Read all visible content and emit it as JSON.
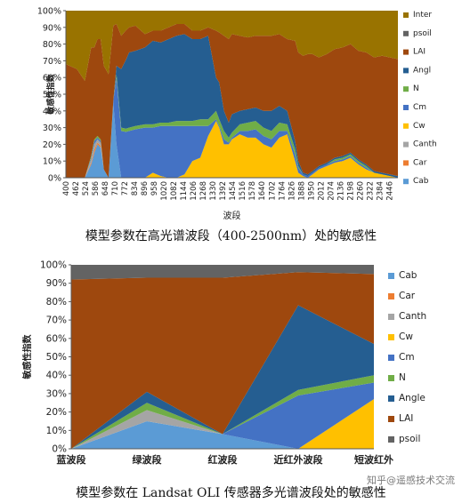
{
  "chart_data": [
    {
      "type": "area",
      "stacked": true,
      "title": "",
      "caption": "模型参数在高光谱波段（400-2500nm）处的敏感性",
      "xlabel": "波段",
      "ylabel": "敏感性指数",
      "ylim": [
        0,
        100
      ],
      "y_ticks": [
        "0%",
        "10%",
        "20%",
        "30%",
        "40%",
        "50%",
        "60%",
        "70%",
        "80%",
        "90%",
        "100%"
      ],
      "x_ticks": [
        "400",
        "462",
        "524",
        "586",
        "648",
        "710",
        "772",
        "834",
        "896",
        "958",
        "1020",
        "1082",
        "1144",
        "1206",
        "1268",
        "1330",
        "1392",
        "1454",
        "1516",
        "1578",
        "1640",
        "1702",
        "1764",
        "1826",
        "1888",
        "1950",
        "2012",
        "2074",
        "2136",
        "2198",
        "2260",
        "2322",
        "2384",
        "2446"
      ],
      "x": [
        400,
        470,
        520,
        560,
        580,
        600,
        620,
        640,
        670,
        700,
        720,
        750,
        780,
        800,
        840,
        900,
        950,
        1000,
        1050,
        1100,
        1150,
        1200,
        1250,
        1300,
        1350,
        1370,
        1400,
        1430,
        1450,
        1500,
        1550,
        1600,
        1650,
        1700,
        1750,
        1800,
        1850,
        1870,
        1900,
        1930,
        1960,
        2000,
        2050,
        2100,
        2150,
        2200,
        2250,
        2300,
        2350,
        2400,
        2450,
        2500
      ],
      "legend": "right",
      "series": [
        {
          "name": "Cab",
          "color": "#5b9bd5",
          "values": [
            0,
            0,
            0,
            8,
            15,
            20,
            18,
            5,
            0,
            45,
            20,
            0,
            0,
            0,
            0,
            0,
            0,
            0,
            0,
            0,
            0,
            0,
            0,
            0,
            0,
            0,
            0,
            0,
            0,
            0,
            0,
            0,
            0,
            0,
            0,
            0,
            0,
            0,
            0,
            0,
            0,
            0,
            0,
            0,
            0,
            0,
            0,
            0,
            0,
            0,
            0,
            0
          ]
        },
        {
          "name": "Car",
          "color": "#ed7d31",
          "values": [
            0,
            0,
            0,
            1,
            2,
            1,
            1,
            0,
            0,
            0,
            0,
            0,
            0,
            0,
            0,
            0,
            0,
            0,
            0,
            0,
            0,
            0,
            0,
            0,
            0,
            0,
            0,
            0,
            0,
            0,
            0,
            0,
            0,
            0,
            0,
            0,
            0,
            0,
            0,
            0,
            0,
            0,
            0,
            0,
            0,
            0,
            0,
            0,
            0,
            0,
            0,
            0
          ]
        },
        {
          "name": "Canth",
          "color": "#a5a5a5",
          "values": [
            0,
            0,
            0,
            2,
            3,
            2,
            2,
            0,
            0,
            0,
            0,
            0,
            0,
            0,
            0,
            0,
            0,
            0,
            0,
            0,
            0,
            0,
            0,
            0,
            0,
            0,
            0,
            0,
            0,
            0,
            0,
            0,
            0,
            0,
            0,
            0,
            0,
            0,
            0,
            0,
            0,
            0,
            0,
            0,
            0,
            0,
            0,
            0,
            0,
            0,
            0,
            0
          ]
        },
        {
          "name": "Cw",
          "color": "#ffc000",
          "values": [
            0,
            0,
            0,
            0,
            0,
            0,
            0,
            0,
            0,
            0,
            0,
            0,
            0,
            0,
            0,
            0,
            3,
            1,
            0,
            0,
            2,
            10,
            12,
            25,
            34,
            30,
            20,
            20,
            23,
            26,
            24,
            24,
            20,
            18,
            24,
            26,
            10,
            3,
            1,
            0,
            2,
            5,
            7,
            9,
            10,
            12,
            8,
            5,
            3,
            2,
            1,
            0
          ]
        },
        {
          "name": "Cm",
          "color": "#4472c4",
          "values": [
            0,
            0,
            0,
            1,
            2,
            1,
            1,
            0,
            0,
            1,
            40,
            28,
            28,
            28,
            29,
            30,
            27,
            30,
            31,
            31,
            29,
            21,
            19,
            6,
            1,
            1,
            3,
            1,
            1,
            2,
            4,
            5,
            5,
            5,
            4,
            2,
            4,
            3,
            1,
            1,
            1,
            1,
            1,
            1,
            1,
            1,
            1,
            1,
            0,
            0,
            0,
            0
          ]
        },
        {
          "name": "N",
          "color": "#70ad47",
          "values": [
            0,
            0,
            0,
            1,
            1,
            1,
            1,
            0,
            0,
            0,
            2,
            2,
            2,
            2,
            2,
            2,
            2,
            2,
            2,
            3,
            3,
            3,
            4,
            4,
            5,
            4,
            5,
            3,
            3,
            4,
            5,
            5,
            5,
            5,
            5,
            4,
            3,
            1,
            0,
            0,
            0,
            0,
            0,
            1,
            1,
            1,
            1,
            1,
            0,
            0,
            0,
            0
          ]
        },
        {
          "name": "Angl",
          "color": "#255e91",
          "values": [
            0,
            0,
            0,
            0,
            0,
            0,
            0,
            0,
            0,
            0,
            5,
            35,
            42,
            45,
            45,
            46,
            50,
            48,
            50,
            51,
            52,
            49,
            48,
            50,
            20,
            22,
            12,
            9,
            11,
            8,
            8,
            8,
            10,
            12,
            10,
            8,
            5,
            3,
            1,
            1,
            1,
            1,
            1,
            1,
            1,
            1,
            1,
            1,
            1,
            1,
            1,
            1
          ]
        },
        {
          "name": "LAI",
          "color": "#9e480e",
          "values": [
            68,
            65,
            58,
            65,
            55,
            58,
            60,
            62,
            62,
            45,
            25,
            20,
            18,
            15,
            15,
            8,
            6,
            7,
            7,
            7,
            6,
            5,
            5,
            5,
            28,
            30,
            45,
            50,
            48,
            45,
            43,
            43,
            45,
            45,
            43,
            43,
            60,
            65,
            70,
            72,
            70,
            65,
            65,
            65,
            65,
            65,
            65,
            67,
            68,
            70,
            70,
            70
          ]
        },
        {
          "name": "psoil",
          "color": "#636363",
          "values": [
            0,
            0,
            0,
            0,
            0,
            0,
            0,
            0,
            0,
            0,
            0,
            0,
            0,
            0,
            0,
            0,
            0,
            0,
            0,
            0,
            0,
            0,
            0,
            0,
            0,
            0,
            0,
            0,
            0,
            0,
            0,
            0,
            0,
            0,
            0,
            0,
            0,
            0,
            0,
            0,
            0,
            0,
            0,
            0,
            0,
            0,
            0,
            0,
            0,
            0,
            0,
            0
          ]
        },
        {
          "name": "Inter",
          "color": "#997300",
          "values": [
            32,
            35,
            42,
            22,
            22,
            17,
            17,
            33,
            38,
            9,
            8,
            15,
            12,
            10,
            9,
            14,
            12,
            12,
            10,
            8,
            8,
            12,
            12,
            10,
            12,
            13,
            15,
            17,
            14,
            15,
            16,
            15,
            15,
            15,
            14,
            17,
            18,
            25,
            27,
            26,
            26,
            28,
            26,
            23,
            22,
            20,
            24,
            25,
            28,
            27,
            28,
            29
          ]
        }
      ]
    },
    {
      "type": "area",
      "stacked": true,
      "title": "",
      "caption": "模型参数在 Landsat OLI 传感器多光谱波段处的敏感性",
      "xlabel": "",
      "ylabel": "敏感性指数",
      "ylim": [
        0,
        100
      ],
      "y_ticks": [
        "0%",
        "10%",
        "20%",
        "30%",
        "40%",
        "50%",
        "60%",
        "70%",
        "80%",
        "90%",
        "100%"
      ],
      "categories": [
        "蓝波段",
        "绿波段",
        "红波段",
        "近红外波段",
        "短波红外"
      ],
      "legend": "right",
      "series": [
        {
          "name": "Cab",
          "color": "#5b9bd5",
          "values": [
            0,
            15,
            8,
            0,
            0
          ]
        },
        {
          "name": "Car",
          "color": "#ed7d31",
          "values": [
            0,
            0,
            0,
            0,
            0
          ]
        },
        {
          "name": "Canth",
          "color": "#a5a5a5",
          "values": [
            0,
            6,
            0,
            0,
            0
          ]
        },
        {
          "name": "Cw",
          "color": "#ffc000",
          "values": [
            0,
            0,
            0,
            0,
            27
          ]
        },
        {
          "name": "Cm",
          "color": "#4472c4",
          "values": [
            0,
            0,
            0,
            29,
            9
          ]
        },
        {
          "name": "N",
          "color": "#70ad47",
          "values": [
            0,
            4,
            0,
            3,
            4
          ]
        },
        {
          "name": "Angle",
          "color": "#255e91",
          "values": [
            0,
            6,
            0,
            46,
            17
          ]
        },
        {
          "name": "LAI",
          "color": "#9e480e",
          "values": [
            92,
            62,
            85,
            18,
            38
          ]
        },
        {
          "name": "psoil",
          "color": "#636363",
          "values": [
            8,
            7,
            7,
            4,
            5
          ]
        }
      ]
    }
  ],
  "watermark": "知乎@遥感技术交流"
}
